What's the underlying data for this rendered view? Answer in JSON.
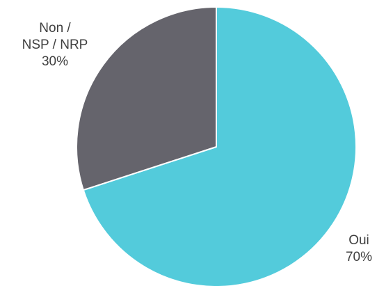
{
  "chart_data": {
    "type": "pie",
    "title": "",
    "slices": [
      {
        "label": "Oui",
        "value": 70,
        "value_label": "70%",
        "color": "#53CBDB"
      },
      {
        "label_lines": [
          "Non /",
          "NSP / NRP"
        ],
        "label": "Non / NSP / NRP",
        "value": 30,
        "value_label": "30%",
        "color": "#65646C"
      }
    ],
    "start_angle": "12 o'clock",
    "direction": "clockwise",
    "legend": "none",
    "data_labels": "outside"
  }
}
